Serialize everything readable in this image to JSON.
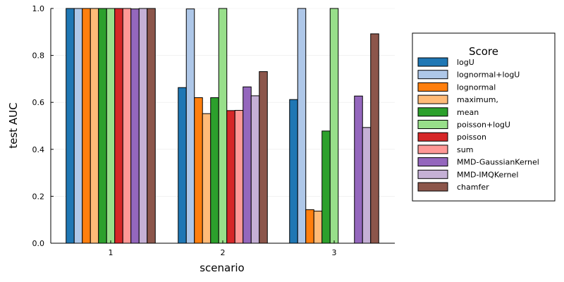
{
  "chart_data": {
    "type": "bar",
    "xlabel": "scenario",
    "ylabel": "test AUC",
    "ylim": [
      0,
      1
    ],
    "yticks": [
      "0.0",
      "0.2",
      "0.4",
      "0.6",
      "0.8",
      "1.0"
    ],
    "categories": [
      "1",
      "2",
      "3"
    ],
    "grid": true,
    "legend": {
      "title": "Score",
      "position": "right"
    },
    "series": [
      {
        "name": "logU",
        "color": "#1f77b4",
        "values": [
          1.0,
          0.663,
          0.612
        ]
      },
      {
        "name": "lognormal+logU",
        "color": "#aec7e8",
        "values": [
          1.0,
          0.998,
          1.0
        ]
      },
      {
        "name": "lognormal",
        "color": "#ff7f0e",
        "values": [
          1.0,
          0.62,
          0.143
        ]
      },
      {
        "name": "maximum,",
        "color": "#ffbb78",
        "values": [
          1.0,
          0.552,
          0.137
        ]
      },
      {
        "name": "mean",
        "color": "#2ca02c",
        "values": [
          1.0,
          0.62,
          0.478
        ]
      },
      {
        "name": "poisson+logU",
        "color": "#98df8a",
        "values": [
          1.0,
          1.0,
          1.0
        ]
      },
      {
        "name": "poisson",
        "color": "#d62728",
        "values": [
          1.0,
          0.565,
          0.0
        ]
      },
      {
        "name": "sum",
        "color": "#ff9896",
        "values": [
          1.0,
          0.566,
          0.0
        ]
      },
      {
        "name": "MMD-GaussianKernel",
        "color": "#9467bd",
        "values": [
          0.998,
          0.666,
          0.627
        ]
      },
      {
        "name": "MMD-IMQKernel",
        "color": "#c5b0d5",
        "values": [
          1.0,
          0.628,
          0.493
        ]
      },
      {
        "name": "chamfer",
        "color": "#8c564b",
        "values": [
          1.0,
          0.731,
          0.892
        ]
      }
    ]
  }
}
